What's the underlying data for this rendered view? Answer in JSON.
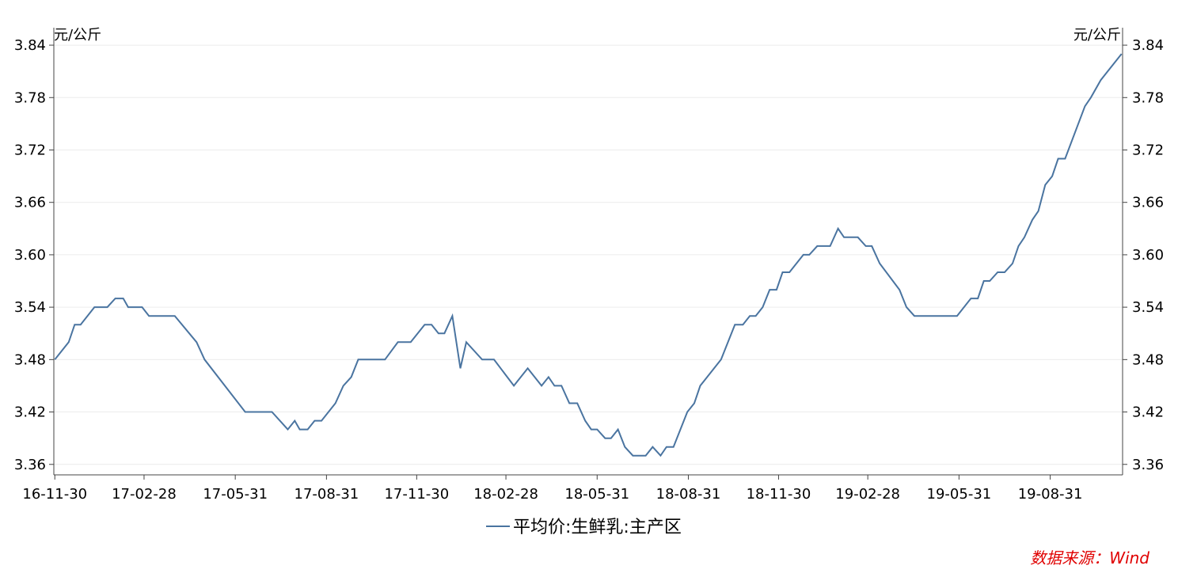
{
  "chart_data": {
    "type": "line",
    "y_label": "元/公斤",
    "y2_label": "元/公斤",
    "source": "数据来源：Wind",
    "x": [
      "16-11-30",
      "16-12-14",
      "16-12-20",
      "16-12-26",
      "17-01-09",
      "17-01-22",
      "17-01-30",
      "17-02-07",
      "17-02-12",
      "17-02-26",
      "17-03-05",
      "17-03-31",
      "17-04-22",
      "17-04-30",
      "17-06-10",
      "17-07-07",
      "17-07-23",
      "17-07-30",
      "17-08-04",
      "17-08-12",
      "17-08-19",
      "17-08-26",
      "17-09-09",
      "17-09-17",
      "17-09-25",
      "17-10-02",
      "17-10-29",
      "17-11-11",
      "17-11-24",
      "17-12-08",
      "17-12-15",
      "17-12-22",
      "17-12-28",
      "18-01-05",
      "18-01-13",
      "18-01-19",
      "18-02-04",
      "18-02-16",
      "18-03-08",
      "18-03-22",
      "18-04-05",
      "18-04-12",
      "18-04-18",
      "18-04-25",
      "18-05-03",
      "18-05-11",
      "18-05-19",
      "18-05-25",
      "18-05-31",
      "18-06-08",
      "18-06-14",
      "18-06-21",
      "18-06-28",
      "18-07-06",
      "18-07-19",
      "18-07-26",
      "18-08-03",
      "18-08-09",
      "18-08-16",
      "18-08-30",
      "18-09-06",
      "18-09-12",
      "18-10-03",
      "18-10-17",
      "18-10-25",
      "18-11-01",
      "18-11-07",
      "18-11-14",
      "18-11-21",
      "18-11-28",
      "18-12-04",
      "18-12-11",
      "18-12-25",
      "18-12-31",
      "19-01-08",
      "19-01-21",
      "19-01-29",
      "19-02-04",
      "19-02-18",
      "19-02-26",
      "19-03-04",
      "19-03-12",
      "19-04-01",
      "19-04-08",
      "19-04-16",
      "19-05-29",
      "19-06-12",
      "19-06-19",
      "19-06-25",
      "19-07-01",
      "19-07-09",
      "19-07-16",
      "19-07-24",
      "19-07-30",
      "19-08-05",
      "19-08-13",
      "19-08-19",
      "19-08-26",
      "19-09-02",
      "19-09-08",
      "19-09-15",
      "19-10-05",
      "19-10-11",
      "19-10-21",
      "19-11-11"
    ],
    "series": [
      {
        "name": "平均价:生鲜乳:主产区",
        "color": "#4a74a0",
        "values": [
          3.48,
          3.5,
          3.52,
          3.52,
          3.54,
          3.54,
          3.55,
          3.55,
          3.54,
          3.54,
          3.53,
          3.53,
          3.5,
          3.48,
          3.42,
          3.42,
          3.4,
          3.41,
          3.4,
          3.4,
          3.41,
          3.41,
          3.43,
          3.45,
          3.46,
          3.48,
          3.48,
          3.5,
          3.5,
          3.52,
          3.52,
          3.51,
          3.51,
          3.53,
          3.47,
          3.5,
          3.48,
          3.48,
          3.45,
          3.47,
          3.45,
          3.46,
          3.45,
          3.45,
          3.43,
          3.43,
          3.41,
          3.4,
          3.4,
          3.39,
          3.39,
          3.4,
          3.38,
          3.37,
          3.37,
          3.38,
          3.37,
          3.38,
          3.38,
          3.42,
          3.43,
          3.45,
          3.48,
          3.52,
          3.52,
          3.53,
          3.53,
          3.54,
          3.56,
          3.56,
          3.58,
          3.58,
          3.6,
          3.6,
          3.61,
          3.61,
          3.63,
          3.62,
          3.62,
          3.61,
          3.61,
          3.59,
          3.56,
          3.54,
          3.53,
          3.53,
          3.55,
          3.55,
          3.57,
          3.57,
          3.58,
          3.58,
          3.59,
          3.61,
          3.62,
          3.64,
          3.65,
          3.68,
          3.69,
          3.71,
          3.71,
          3.77,
          3.78,
          3.8,
          3.83
        ]
      }
    ],
    "xlim": [
      "16-11-29",
      "19-11-12"
    ],
    "xticks": [
      "16-11-30",
      "17-02-28",
      "17-05-31",
      "17-08-31",
      "17-11-30",
      "18-02-28",
      "18-05-31",
      "18-08-31",
      "18-11-30",
      "19-02-28",
      "19-05-31",
      "19-08-31"
    ],
    "ylim": [
      3.348,
      3.86
    ],
    "yticks": [
      3.36,
      3.42,
      3.48,
      3.54,
      {
        "value": 3.6,
        "label": "3.60"
      },
      3.66,
      3.72,
      3.78,
      3.84
    ],
    "y2lim": [
      3.348,
      3.86
    ],
    "y2ticks": [
      3.36,
      3.42,
      3.48,
      3.54,
      {
        "value": 3.6,
        "label": "3.60"
      },
      3.66,
      3.72,
      3.78,
      3.84
    ],
    "grid": true
  }
}
